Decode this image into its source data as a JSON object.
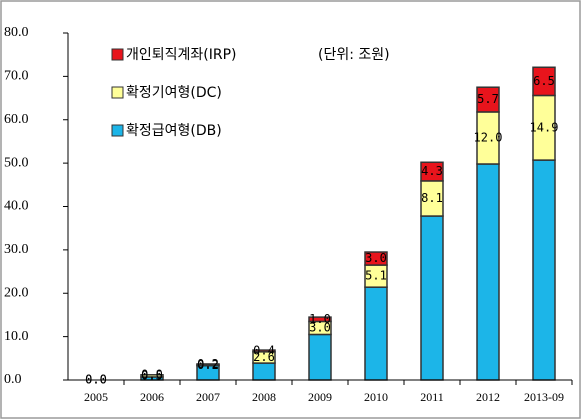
{
  "chart_data": {
    "type": "stacked_bar",
    "annotation": "(단위: 조원)",
    "categories": [
      "2005",
      "2006",
      "2007",
      "2008",
      "2009",
      "2010",
      "2011",
      "2012",
      "2013-09"
    ],
    "series": [
      {
        "name": "확정급여형(DB)",
        "color": "#1cb5e8",
        "values": [
          0.0,
          0.7,
          3.3,
          3.9,
          10.5,
          21.4,
          37.8,
          49.8,
          50.7
        ]
      },
      {
        "name": "확정기여형(DC)",
        "color": "#ffff99",
        "values": [
          0.0,
          0.5,
          0.2,
          2.6,
          3.0,
          5.1,
          8.1,
          12.0,
          14.9
        ],
        "value_labels": [
          "0.0",
          "0.5",
          "0.2",
          "2.6",
          "3.0",
          "5.1",
          "8.1",
          "12.0",
          "14.9"
        ]
      },
      {
        "name": "개인퇴직계좌(IRP)",
        "color": "#e8141c",
        "values": [
          0.0,
          0.0,
          0.2,
          0.4,
          1.0,
          3.0,
          4.3,
          5.7,
          6.5
        ],
        "value_labels": [
          "0.0",
          "0.0",
          "0.2",
          "0.4",
          "1.0",
          "3.0",
          "4.3",
          "5.7",
          "6.5"
        ]
      }
    ],
    "legend_order": [
      2,
      1,
      0
    ],
    "legend": "top-left",
    "ylim": [
      0,
      80
    ],
    "yticks": [
      {
        "value": 0,
        "label": "0.0"
      },
      {
        "value": 10,
        "label": "10.0"
      },
      {
        "value": 20,
        "label": "20.0"
      },
      {
        "value": 30,
        "label": "30.0"
      },
      {
        "value": 40,
        "label": "40.0"
      },
      {
        "value": 50,
        "label": "50.0"
      },
      {
        "value": 60,
        "label": "60.0"
      },
      {
        "value": 70,
        "label": "70.0"
      },
      {
        "value": 80,
        "label": "80.0"
      }
    ],
    "grid": false
  }
}
